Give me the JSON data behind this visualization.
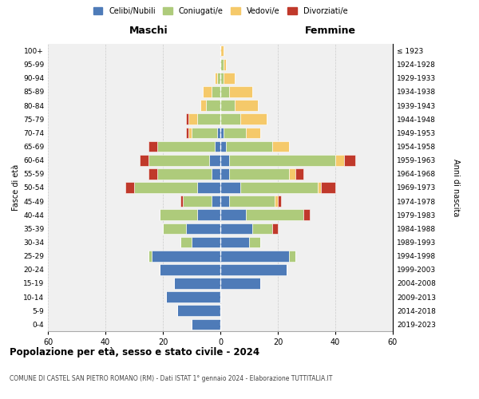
{
  "age_groups": [
    "0-4",
    "5-9",
    "10-14",
    "15-19",
    "20-24",
    "25-29",
    "30-34",
    "35-39",
    "40-44",
    "45-49",
    "50-54",
    "55-59",
    "60-64",
    "65-69",
    "70-74",
    "75-79",
    "80-84",
    "85-89",
    "90-94",
    "95-99",
    "100+"
  ],
  "birth_years": [
    "2019-2023",
    "2014-2018",
    "2009-2013",
    "2004-2008",
    "1999-2003",
    "1994-1998",
    "1989-1993",
    "1984-1988",
    "1979-1983",
    "1974-1978",
    "1969-1973",
    "1964-1968",
    "1959-1963",
    "1954-1958",
    "1949-1953",
    "1944-1948",
    "1939-1943",
    "1934-1938",
    "1929-1933",
    "1924-1928",
    "≤ 1923"
  ],
  "colors": {
    "celibi": "#4E7BB8",
    "coniugati": "#AECB7B",
    "vedovi": "#F5C96A",
    "divorziati": "#C0392B"
  },
  "males": {
    "celibi": [
      10,
      15,
      19,
      16,
      21,
      24,
      10,
      12,
      8,
      3,
      8,
      3,
      4,
      2,
      1,
      0,
      0,
      0,
      0,
      0,
      0
    ],
    "coniugati": [
      0,
      0,
      0,
      0,
      0,
      1,
      4,
      8,
      13,
      10,
      22,
      19,
      21,
      20,
      9,
      8,
      5,
      3,
      1,
      0,
      0
    ],
    "vedovi": [
      0,
      0,
      0,
      0,
      0,
      0,
      0,
      0,
      0,
      0,
      0,
      0,
      0,
      0,
      1,
      3,
      2,
      3,
      1,
      0,
      0
    ],
    "divorziati": [
      0,
      0,
      0,
      0,
      0,
      0,
      0,
      0,
      0,
      1,
      3,
      3,
      3,
      3,
      1,
      1,
      0,
      0,
      0,
      0,
      0
    ]
  },
  "females": {
    "celibi": [
      0,
      0,
      0,
      14,
      23,
      24,
      10,
      11,
      9,
      3,
      7,
      3,
      3,
      2,
      1,
      0,
      0,
      0,
      0,
      0,
      0
    ],
    "coniugati": [
      0,
      0,
      0,
      0,
      0,
      2,
      4,
      7,
      20,
      16,
      27,
      21,
      37,
      16,
      8,
      7,
      5,
      3,
      1,
      1,
      0
    ],
    "vedovi": [
      0,
      0,
      0,
      0,
      0,
      0,
      0,
      0,
      0,
      1,
      1,
      2,
      3,
      6,
      5,
      9,
      8,
      8,
      4,
      1,
      1
    ],
    "divorziati": [
      0,
      0,
      0,
      0,
      0,
      0,
      0,
      2,
      2,
      1,
      5,
      3,
      4,
      0,
      0,
      0,
      0,
      0,
      0,
      0,
      0
    ]
  },
  "title": "Popolazione per età, sesso e stato civile - 2024",
  "subtitle": "COMUNE DI CASTEL SAN PIETRO ROMANO (RM) - Dati ISTAT 1° gennaio 2024 - Elaborazione TUTTITALIA.IT",
  "xlabel_left": "Maschi",
  "xlabel_right": "Femmine",
  "ylabel_left": "Fasce di età",
  "ylabel_right": "Anni di nascita",
  "xlim": 60,
  "legend_labels": [
    "Celibi/Nubili",
    "Coniugati/e",
    "Vedovi/e",
    "Divorziati/e"
  ],
  "background_color": "#FFFFFF",
  "plot_bg_color": "#F0F0F0",
  "grid_color": "#CCCCCC"
}
